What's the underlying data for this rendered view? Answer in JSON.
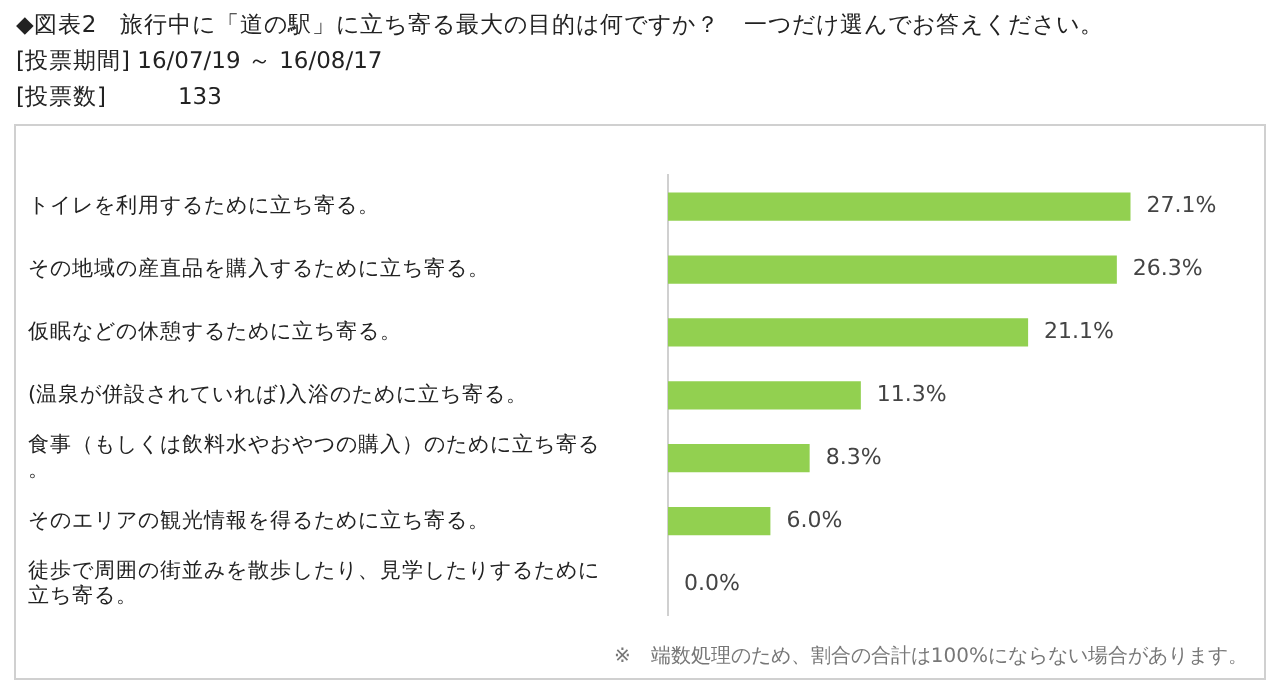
{
  "chart_data": {
    "type": "bar",
    "orientation": "horizontal",
    "title": "◆図表2　旅行中に「道の駅」に立ち寄る最大の目的は何ですか？　一つだけ選んでお答えください。",
    "subtitle": "[投票期間] 16/07/19 ～ 16/08/17\n[投票数]　　　133",
    "categories": [
      "トイレを利用するために立ち寄る。",
      "その地域の産直品を購入するために立ち寄る。",
      "仮眠などの休憩するために立ち寄る。",
      "(温泉が併設されていれば)入浴のために立ち寄る。",
      "食事（もしくは飲料水やおやつの購入）のために立ち寄る。",
      "そのエリアの観光情報を得るために立ち寄る。",
      "徒歩で周囲の街並みを散歩したり、見学したりするために立ち寄る。"
    ],
    "values": [
      27.1,
      26.3,
      21.1,
      11.3,
      8.3,
      6.0,
      0.0
    ],
    "value_labels": [
      "27.1%",
      "26.3%",
      "21.1%",
      "11.3%",
      "8.3%",
      "6.0%",
      "0.0%"
    ],
    "color": "#92d050",
    "legend": false,
    "tick_labels": "y",
    "annotations": [
      "※　端数処理のため、割合の合計は100%にならない場合があります。"
    ]
  }
}
